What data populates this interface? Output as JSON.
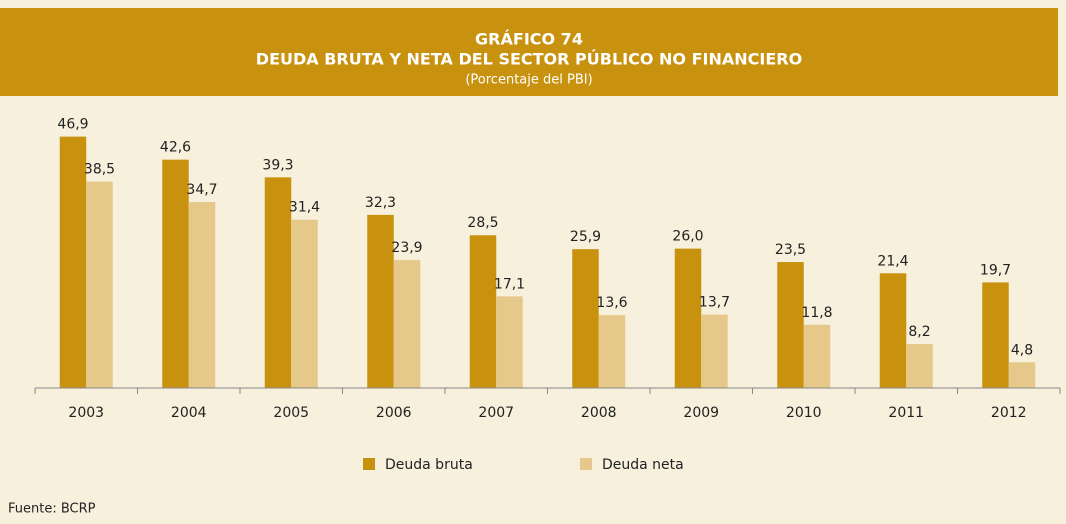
{
  "chart_data": {
    "type": "bar",
    "title": "GRÁFICO 74",
    "subtitle": "DEUDA BRUTA Y NETA DEL SECTOR PÚBLICO NO FINANCIERO",
    "note": "(Porcentaje del PBI)",
    "source": "Fuente: BCRP",
    "categories": [
      "2003",
      "2004",
      "2005",
      "2006",
      "2007",
      "2008",
      "2009",
      "2010",
      "2011",
      "2012"
    ],
    "series": [
      {
        "name": "Deuda bruta",
        "color": "#c8920f",
        "values": [
          46.9,
          42.6,
          39.3,
          32.3,
          28.5,
          25.9,
          26.0,
          23.5,
          21.4,
          19.7
        ],
        "value_labels": [
          "46,9",
          "42,6",
          "39,3",
          "32,3",
          "28,5",
          "25,9",
          "26,0",
          "23,5",
          "21,4",
          "19,7"
        ]
      },
      {
        "name": "Deuda neta",
        "color": "#e6c98a",
        "values": [
          38.5,
          34.7,
          31.4,
          23.9,
          17.1,
          13.6,
          13.7,
          11.8,
          8.2,
          4.8
        ],
        "value_labels": [
          "38,5",
          "34,7",
          "31,4",
          "23,9",
          "17,1",
          "13,6",
          "13,7",
          "11,8",
          "8,2",
          "4,8"
        ]
      }
    ],
    "ylim": [
      0,
      50
    ],
    "grid": false
  }
}
